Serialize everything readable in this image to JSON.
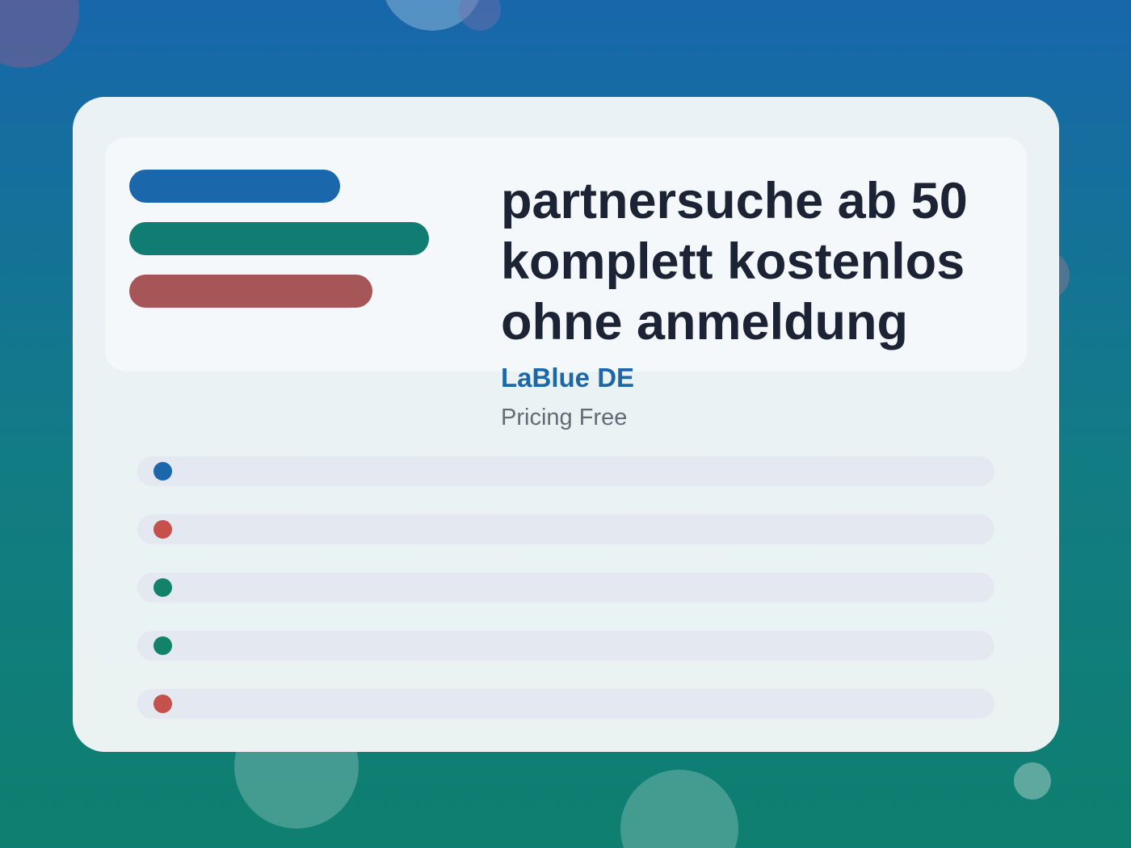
{
  "headline": "partnersuche ab 50 komplett kostenlos ohne anmeldung",
  "brand": "LaBlue DE",
  "pricing": "Pricing Free",
  "colors": {
    "blue": "#1b67ab",
    "green": "#117c72",
    "red": "#a65656",
    "dot_blue": "#1d66ab",
    "dot_red": "#c4514b",
    "dot_green": "#13826a"
  },
  "list_rows": [
    {
      "dot_color": "#1d66ab"
    },
    {
      "dot_color": "#c4514b"
    },
    {
      "dot_color": "#13826a"
    },
    {
      "dot_color": "#13826a"
    },
    {
      "dot_color": "#c4514b"
    }
  ]
}
